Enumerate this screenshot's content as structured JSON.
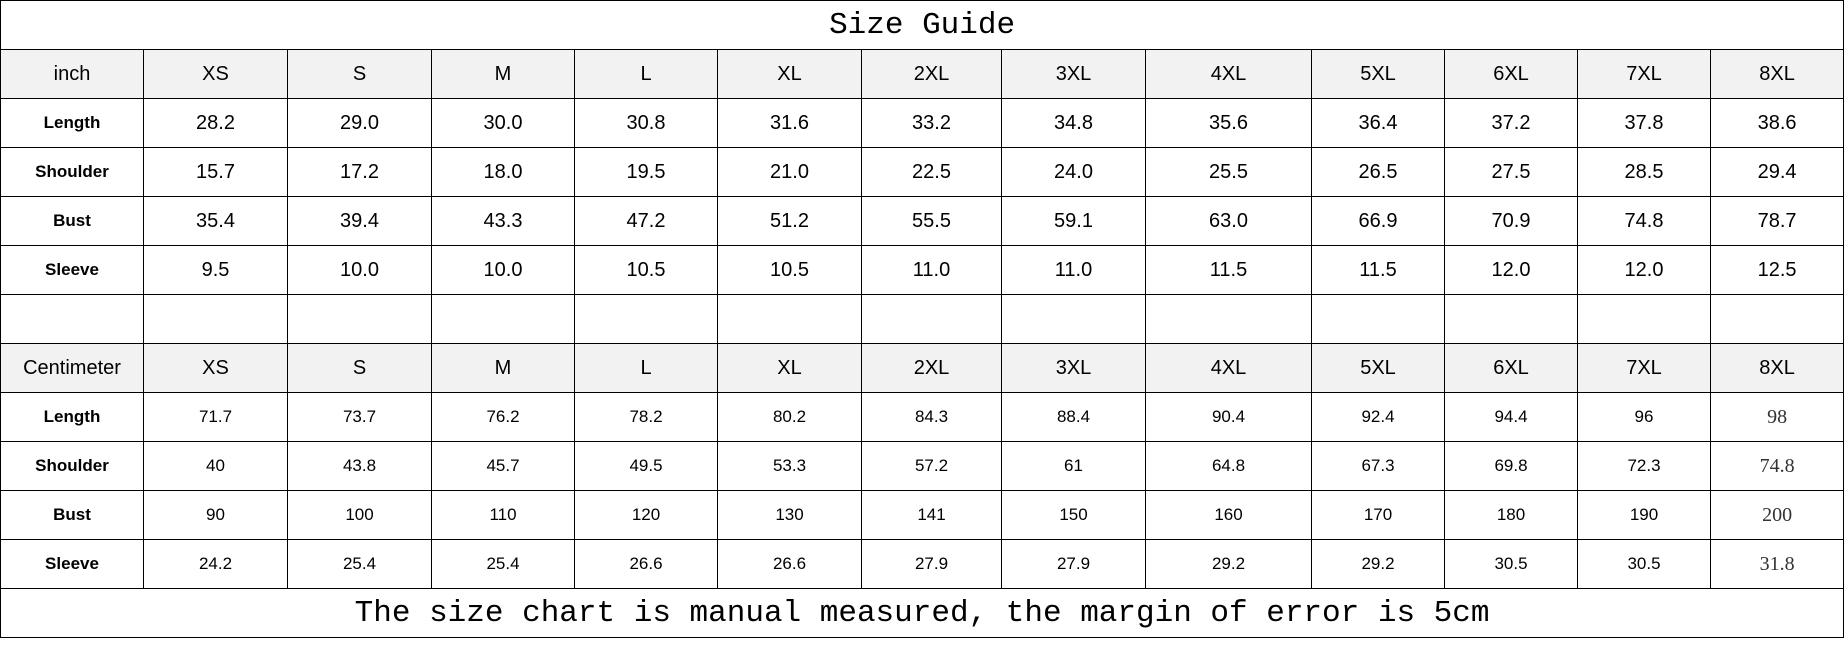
{
  "title": "Size Guide",
  "sizes": [
    "XS",
    "S",
    "M",
    "L",
    "XL",
    "2XL",
    "3XL",
    "4XL",
    "5XL",
    "6XL",
    "7XL",
    "8XL"
  ],
  "inch": {
    "unit_label": "inch",
    "rows": [
      {
        "label": "Length",
        "values": [
          "28.2",
          "29.0",
          "30.0",
          "30.8",
          "31.6",
          "33.2",
          "34.8",
          "35.6",
          "36.4",
          "37.2",
          "37.8",
          "38.6"
        ]
      },
      {
        "label": "Shoulder",
        "values": [
          "15.7",
          "17.2",
          "18.0",
          "19.5",
          "21.0",
          "22.5",
          "24.0",
          "25.5",
          "26.5",
          "27.5",
          "28.5",
          "29.4"
        ]
      },
      {
        "label": "Bust",
        "values": [
          "35.4",
          "39.4",
          "43.3",
          "47.2",
          "51.2",
          "55.5",
          "59.1",
          "63.0",
          "66.9",
          "70.9",
          "74.8",
          "78.7"
        ]
      },
      {
        "label": "Sleeve",
        "values": [
          "9.5",
          "10.0",
          "10.0",
          "10.5",
          "10.5",
          "11.0",
          "11.0",
          "11.5",
          "11.5",
          "12.0",
          "12.0",
          "12.5"
        ]
      }
    ]
  },
  "cm": {
    "unit_label": "Centimeter",
    "rows": [
      {
        "label": "Length",
        "values": [
          "71.7",
          "73.7",
          "76.2",
          "78.2",
          "80.2",
          "84.3",
          "88.4",
          "90.4",
          "92.4",
          "94.4",
          "96",
          "98"
        ]
      },
      {
        "label": "Shoulder",
        "values": [
          "40",
          "43.8",
          "45.7",
          "49.5",
          "53.3",
          "57.2",
          "61",
          "64.8",
          "67.3",
          "69.8",
          "72.3",
          "74.8"
        ]
      },
      {
        "label": "Bust",
        "values": [
          "90",
          "100",
          "110",
          "120",
          "130",
          "141",
          "150",
          "160",
          "170",
          "180",
          "190",
          "200"
        ]
      },
      {
        "label": "Sleeve",
        "values": [
          "24.2",
          "25.4",
          "25.4",
          "26.6",
          "26.6",
          "27.9",
          "27.9",
          "29.2",
          "29.2",
          "30.5",
          "30.5",
          "31.8"
        ]
      }
    ]
  },
  "footer": "The size chart is manual measured, the margin of error is 5cm"
}
